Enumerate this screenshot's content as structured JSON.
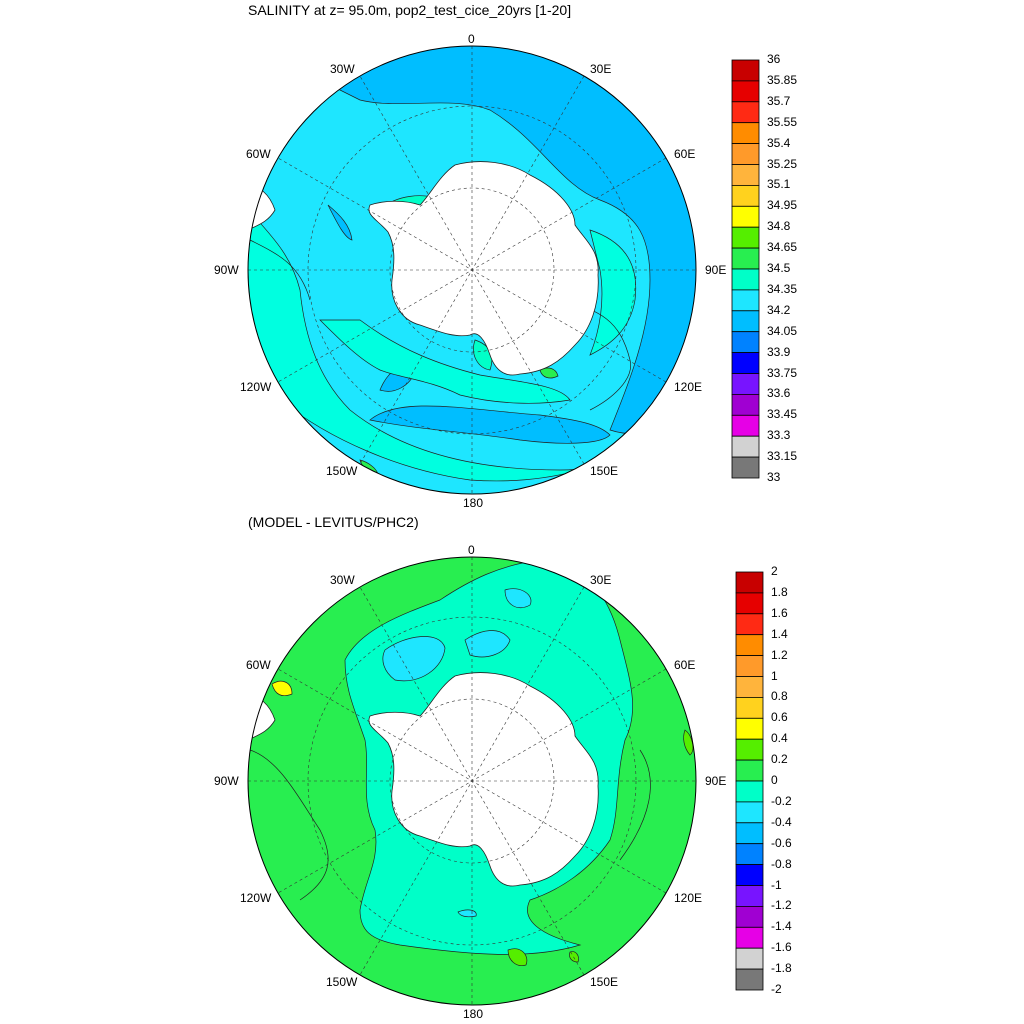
{
  "plot1": {
    "title": "SALINITY at z=  95.0m, pop2_test_cice_20yrs [1-20]",
    "lon_labels": [
      "0",
      "30E",
      "60E",
      "90E",
      "120E",
      "150E",
      "180",
      "150W",
      "120W",
      "90W",
      "60W",
      "30W"
    ],
    "colorbar": {
      "labels": [
        "36",
        "35.85",
        "35.7",
        "35.55",
        "35.4",
        "35.25",
        "35.1",
        "34.95",
        "34.8",
        "34.65",
        "34.5",
        "34.35",
        "34.2",
        "34.05",
        "33.9",
        "33.75",
        "33.6",
        "33.45",
        "33.3",
        "33.15",
        "33"
      ],
      "colors": [
        "#c80000",
        "#e60000",
        "#ff2a14",
        "#ff8c00",
        "#ff9a2a",
        "#ffb43c",
        "#ffd21e",
        "#ffff00",
        "#55ee00",
        "#28ee50",
        "#00ffc8",
        "#1ee6ff",
        "#00beff",
        "#0082ff",
        "#0000ff",
        "#7814ff",
        "#a000d2",
        "#e600e6",
        "#d2d2d2",
        "#787878"
      ]
    }
  },
  "plot2": {
    "title": "(MODEL - LEVITUS/PHC2)",
    "lon_labels": [
      "0",
      "30E",
      "60E",
      "90E",
      "120E",
      "150E",
      "180",
      "150W",
      "120W",
      "90W",
      "60W",
      "30W"
    ],
    "colorbar": {
      "labels": [
        "2",
        "1.8",
        "1.6",
        "1.4",
        "1.2",
        "1",
        "0.8",
        "0.6",
        "0.4",
        "0.2",
        "0",
        "-0.2",
        "-0.4",
        "-0.6",
        "-0.8",
        "-1",
        "-1.2",
        "-1.4",
        "-1.6",
        "-1.8",
        "-2"
      ],
      "colors": [
        "#c80000",
        "#e60000",
        "#ff2a14",
        "#ff8c00",
        "#ff9a2a",
        "#ffb43c",
        "#ffd21e",
        "#ffff00",
        "#55ee00",
        "#28ee50",
        "#00ffc8",
        "#1ee6ff",
        "#00beff",
        "#0082ff",
        "#0000ff",
        "#7814ff",
        "#a000d2",
        "#e600e6",
        "#d2d2d2",
        "#787878"
      ]
    }
  }
}
